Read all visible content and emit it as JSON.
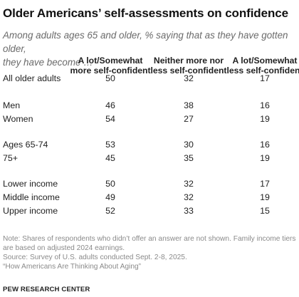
{
  "title": "Older Americans’ self-assessments on confidence",
  "subtitle_lines": [
    "Among adults ages 65 and older, % saying that as they have gotten older,",
    "they have become …"
  ],
  "chart_data": {
    "type": "table",
    "columns": [
      {
        "lines": [
          "A lot/Somewhat",
          "more self-confident"
        ]
      },
      {
        "lines": [
          "Neither more nor",
          "less self-confident"
        ]
      },
      {
        "lines": [
          "A lot/Somewhat",
          "less self-confident"
        ]
      }
    ],
    "rows": [
      {
        "label": "All older adults",
        "values": [
          50,
          32,
          17
        ]
      },
      {
        "label": "Men",
        "values": [
          46,
          38,
          16
        ]
      },
      {
        "label": "Women",
        "values": [
          54,
          27,
          19
        ]
      },
      {
        "label": "Ages 65-74",
        "values": [
          53,
          30,
          16
        ]
      },
      {
        "label": "75+",
        "values": [
          45,
          35,
          19
        ]
      },
      {
        "label": "Lower income",
        "values": [
          50,
          32,
          17
        ]
      },
      {
        "label": "Middle income",
        "values": [
          49,
          32,
          19
        ]
      },
      {
        "label": "Upper income",
        "values": [
          52,
          33,
          15
        ]
      }
    ]
  },
  "notes": [
    "Note: Shares of respondents who didn’t offer an answer are not shown. Family income tiers",
    "are based on adjusted 2024 earnings.",
    "Source: Survey of U.S. adults conducted Sept. 2-8, 2025.",
    "“How Americans Are Thinking About Aging”"
  ],
  "brand": "PEW RESEARCH CENTER"
}
